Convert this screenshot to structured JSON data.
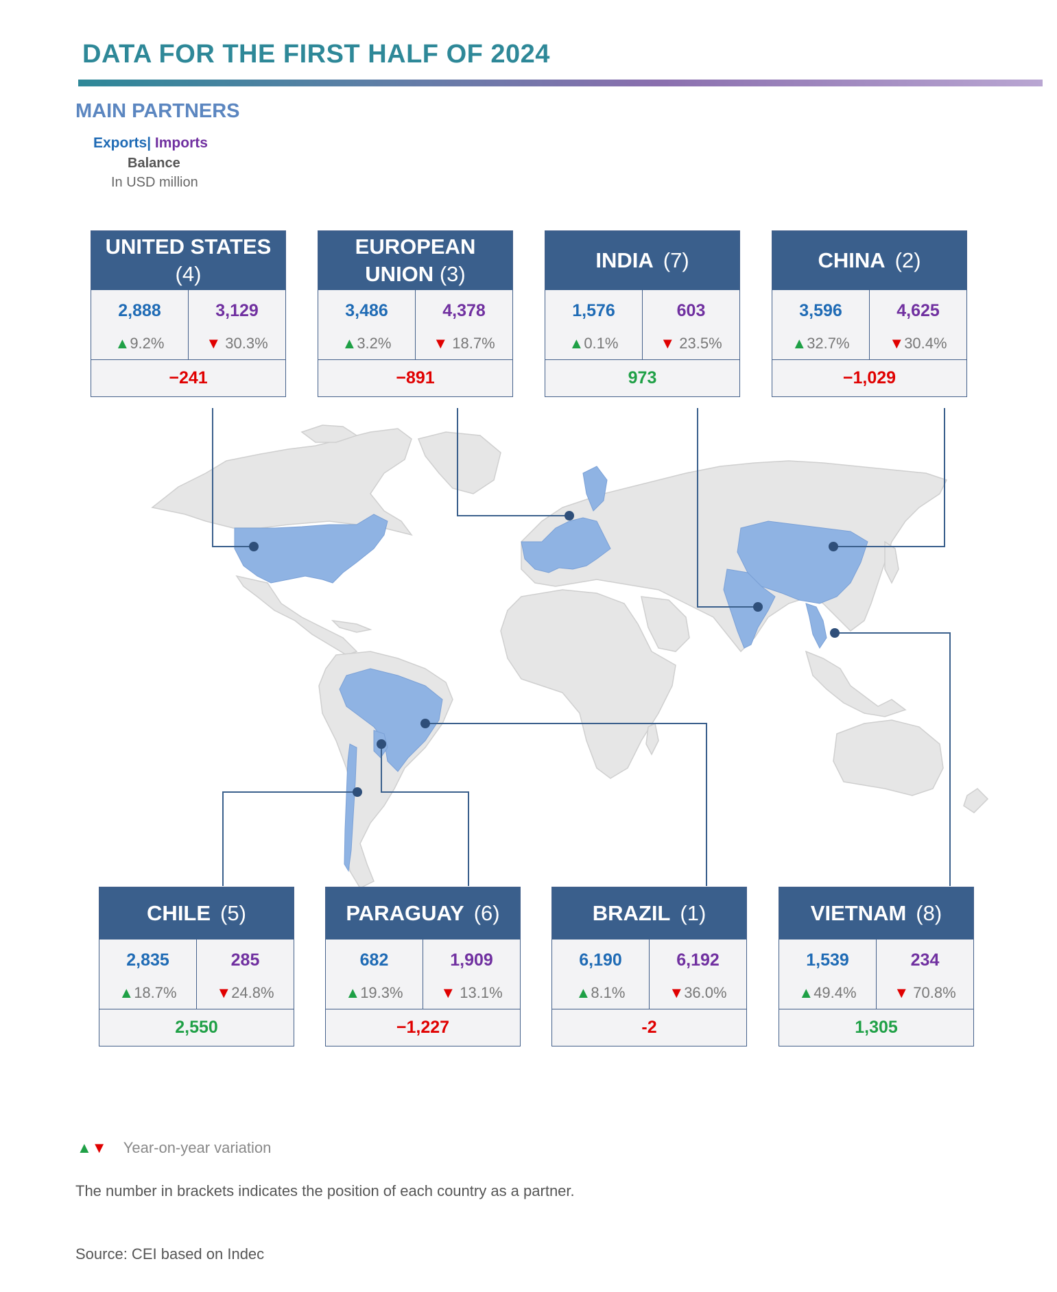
{
  "header": {
    "title": "DATA FOR THE FIRST HALF OF 2024",
    "subtitle": "MAIN PARTNERS"
  },
  "legend": {
    "exports": "Exports",
    "separator": "|",
    "imports": "Imports",
    "balance": "Balance",
    "unit": "In USD million"
  },
  "colors": {
    "exports": "#1f6bb5",
    "imports": "#7030a0",
    "positive": "#1fa046",
    "negative": "#e00000",
    "header_bg": "#3a5f8c",
    "highlight_country": "#8fb3e3",
    "land": "#e6e6e6"
  },
  "partners": [
    {
      "name_line1": "UNITED STATES",
      "name_line2": "",
      "rank": "(4)",
      "exports": "2,888",
      "imports": "3,129",
      "exports_var": "9.2%",
      "imports_var": "30.3%",
      "balance": "−241"
    },
    {
      "name_line1": "EUROPEAN",
      "name_line2": "UNION",
      "rank": "(3)",
      "exports": "3,486",
      "imports": "4,378",
      "exports_var": "3.2%",
      "imports_var": "18.7%",
      "balance": "−891"
    },
    {
      "name_line1": "INDIA",
      "name_line2": "",
      "rank": "(7)",
      "exports": "1,576",
      "imports": "603",
      "exports_var": "0.1%",
      "imports_var": "23.5%",
      "balance": "973"
    },
    {
      "name_line1": "CHINA",
      "name_line2": "",
      "rank": "(2)",
      "exports": "3,596",
      "imports": "4,625",
      "exports_var": "32.7%",
      "imports_var": "30.4%",
      "balance": "−1,029"
    },
    {
      "name_line1": "CHILE",
      "name_line2": "",
      "rank": "(5)",
      "exports": "2,835",
      "imports": "285",
      "exports_var": "18.7%",
      "imports_var": "24.8%",
      "balance": "2,550"
    },
    {
      "name_line1": "PARAGUAY",
      "name_line2": "",
      "rank": "(6)",
      "exports": "682",
      "imports": "1,909",
      "exports_var": "19.3%",
      "imports_var": "13.1%",
      "balance": "−1,227"
    },
    {
      "name_line1": "BRAZIL",
      "name_line2": "",
      "rank": "(1)",
      "exports": "6,190",
      "imports": "6,192",
      "exports_var": "8.1%",
      "imports_var": "36.0%",
      "balance": "-2"
    },
    {
      "name_line1": "VIETNAM",
      "name_line2": "",
      "rank": "(8)",
      "exports": "1,539",
      "imports": "234",
      "exports_var": "49.4%",
      "imports_var": "70.8%",
      "balance": "1,305"
    }
  ],
  "footer": {
    "variation_legend": "Year-on-year variation",
    "note": "The number in brackets indicates the position of each country as a partner.",
    "source": "Source: CEI based on Indec"
  }
}
